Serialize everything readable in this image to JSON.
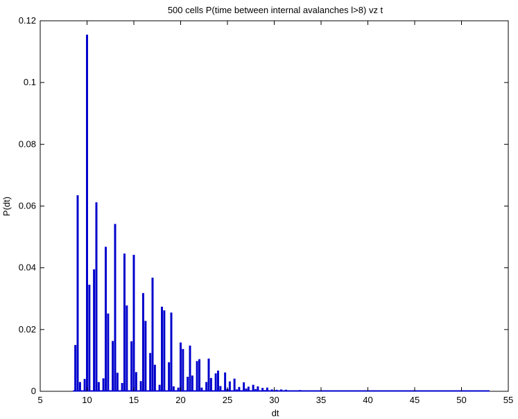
{
  "chart_data": {
    "type": "bar",
    "title": "500 cells P(time between internal avalanches l>8) vz t",
    "xlabel": "dt",
    "ylabel": "P(dt)",
    "xlim": [
      5,
      55
    ],
    "ylim": [
      0,
      0.12
    ],
    "xticks": [
      5,
      10,
      15,
      20,
      25,
      30,
      35,
      40,
      45,
      50,
      55
    ],
    "yticks": [
      0,
      0.02,
      0.04,
      0.06,
      0.08,
      0.1,
      0.12
    ],
    "ytick_labels": [
      "0",
      "0.02",
      "0.04",
      "0.06",
      "0.08",
      "0.1",
      "0.12"
    ],
    "grid": false,
    "bar_color": "#0000cc",
    "x": [
      8.75,
      9.0,
      9.25,
      9.75,
      10.0,
      10.25,
      10.75,
      11.0,
      11.25,
      11.75,
      12.0,
      12.25,
      12.75,
      13.0,
      13.25,
      13.75,
      14.0,
      14.25,
      14.75,
      15.0,
      15.25,
      15.75,
      16.0,
      16.25,
      16.75,
      17.0,
      17.25,
      17.75,
      18.0,
      18.25,
      18.75,
      19.0,
      19.25,
      19.75,
      20.0,
      20.25,
      20.75,
      21.0,
      21.25,
      21.75,
      22.0,
      22.25,
      22.75,
      23.0,
      23.25,
      23.75,
      24.0,
      24.25,
      24.75,
      25.0,
      25.25,
      25.75,
      26.0,
      26.25,
      26.75,
      27.0,
      27.25,
      27.75,
      28.0,
      28.25,
      28.75,
      29.0,
      29.25,
      29.75,
      30.0,
      30.25,
      30.75,
      31.0,
      31.25,
      31.75,
      32.0,
      32.75,
      33.0,
      33.75,
      34.0,
      34.75,
      35.0
    ],
    "values": [
      0.015,
      0.0635,
      0.003,
      0.004,
      0.1155,
      0.0345,
      0.0395,
      0.0612,
      0.003,
      0.0042,
      0.0468,
      0.0252,
      0.0163,
      0.0542,
      0.006,
      0.0027,
      0.0446,
      0.0278,
      0.0162,
      0.0442,
      0.0062,
      0.0033,
      0.0318,
      0.0228,
      0.0124,
      0.0368,
      0.0086,
      0.0021,
      0.0274,
      0.0262,
      0.0094,
      0.0255,
      0.0016,
      0.0012,
      0.0158,
      0.0137,
      0.0047,
      0.0148,
      0.0051,
      0.0098,
      0.0104,
      0.0012,
      0.003,
      0.0106,
      0.0043,
      0.0058,
      0.0067,
      0.0017,
      0.0061,
      0.0008,
      0.0032,
      0.0041,
      0.0006,
      0.0014,
      0.0029,
      0.0009,
      0.0015,
      0.0021,
      0.0007,
      0.0016,
      0.0011,
      0.0004,
      0.0012,
      0.0006,
      0.0003,
      0.0005,
      0.0006,
      0.0003,
      0.0005,
      0.0003,
      0.0002,
      0.0004,
      0.0002,
      0.0003,
      0.0002,
      0.0002,
      0.0001
    ],
    "baseline_extent": [
      8.5,
      53
    ]
  }
}
